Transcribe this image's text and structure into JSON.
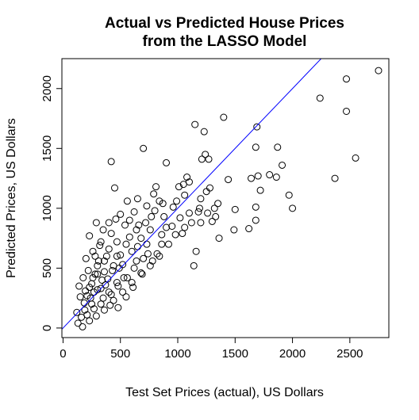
{
  "chart_data": {
    "type": "scatter",
    "title": "Actual vs Predicted House Prices",
    "subtitle": "from the LASSO Model",
    "xlabel": "Test Set Prices (actual), US Dollars",
    "ylabel": "Predicted Prices, US Dollars",
    "xlim": [
      -10,
      2840
    ],
    "ylim": [
      -80,
      2250
    ],
    "xticks": [
      0,
      500,
      1000,
      1500,
      2000,
      2500
    ],
    "yticks": [
      0,
      500,
      1000,
      1500,
      2000
    ],
    "grid": false,
    "legend": "none",
    "reference_line": {
      "slope": 1,
      "intercept": 0,
      "color": "#0000ff"
    },
    "marker": "open-circle",
    "colors": {
      "points": "#000000",
      "line": "#0000ff",
      "frame": "#000000"
    },
    "series": [
      {
        "values": [
          [
            2750,
            2150
          ],
          [
            2470,
            2080
          ],
          [
            2240,
            1920
          ],
          [
            2470,
            1810
          ],
          [
            2550,
            1420
          ],
          [
            2370,
            1250
          ],
          [
            2000,
            1000
          ],
          [
            1970,
            1110
          ],
          [
            1910,
            1360
          ],
          [
            1870,
            1510
          ],
          [
            1860,
            1260
          ],
          [
            1800,
            1280
          ],
          [
            1720,
            1150
          ],
          [
            1700,
            1270
          ],
          [
            1680,
            1510
          ],
          [
            1690,
            1680
          ],
          [
            1680,
            1010
          ],
          [
            1680,
            900
          ],
          [
            1640,
            1250
          ],
          [
            1620,
            830
          ],
          [
            1500,
            990
          ],
          [
            1490,
            820
          ],
          [
            1440,
            1240
          ],
          [
            1400,
            1760
          ],
          [
            1350,
            1040
          ],
          [
            1330,
            930
          ],
          [
            1360,
            750
          ],
          [
            1300,
            890
          ],
          [
            1270,
            1410
          ],
          [
            1280,
            1170
          ],
          [
            1250,
            1140
          ],
          [
            1240,
            1450
          ],
          [
            1230,
            1640
          ],
          [
            1210,
            1410
          ],
          [
            1200,
            1080
          ],
          [
            1190,
            1000
          ],
          [
            1180,
            970
          ],
          [
            1150,
            1700
          ],
          [
            1160,
            640
          ],
          [
            1140,
            520
          ],
          [
            1120,
            880
          ],
          [
            1100,
            1220
          ],
          [
            1080,
            1260
          ],
          [
            1060,
            1110
          ],
          [
            1050,
            1200
          ],
          [
            1040,
            790
          ],
          [
            1010,
            1180
          ],
          [
            990,
            1060
          ],
          [
            960,
            1010
          ],
          [
            900,
            1380
          ],
          [
            880,
            930
          ],
          [
            860,
            700
          ],
          [
            840,
            1060
          ],
          [
            790,
            1120
          ],
          [
            770,
            930
          ],
          [
            740,
            620
          ],
          [
            700,
            1500
          ],
          [
            690,
            450
          ],
          [
            660,
            860
          ],
          [
            640,
            560
          ],
          [
            620,
            970
          ],
          [
            610,
            340
          ],
          [
            580,
            900
          ],
          [
            560,
            1060
          ],
          [
            550,
            700
          ],
          [
            530,
            420
          ],
          [
            500,
            610
          ],
          [
            490,
            500
          ],
          [
            470,
            380
          ],
          [
            460,
            910
          ],
          [
            450,
            1170
          ],
          [
            440,
            520
          ],
          [
            420,
            790
          ],
          [
            420,
            1390
          ],
          [
            400,
            300
          ],
          [
            380,
            600
          ],
          [
            360,
            470
          ],
          [
            350,
            820
          ],
          [
            340,
            400
          ],
          [
            330,
            200
          ],
          [
            320,
            690
          ],
          [
            310,
            560
          ],
          [
            300,
            320
          ],
          [
            290,
            880
          ],
          [
            280,
            450
          ],
          [
            270,
            160
          ],
          [
            260,
            640
          ],
          [
            250,
            370
          ],
          [
            240,
            250
          ],
          [
            230,
            770
          ],
          [
            220,
            480
          ],
          [
            210,
            110
          ],
          [
            200,
            580
          ],
          [
            195,
            310
          ],
          [
            185,
            210
          ],
          [
            175,
            420
          ],
          [
            160,
            90
          ],
          [
            150,
            260
          ],
          [
            130,
            40
          ],
          [
            170,
            10
          ],
          [
            120,
            130
          ],
          [
            140,
            350
          ],
          [
            900,
            840
          ],
          [
            820,
            620
          ],
          [
            760,
            820
          ],
          [
            730,
            700
          ],
          [
            680,
            750
          ],
          [
            650,
            680
          ],
          [
            600,
            640
          ],
          [
            520,
            530
          ],
          [
            470,
            600
          ],
          [
            430,
            480
          ],
          [
            390,
            410
          ],
          [
            370,
            360
          ],
          [
            330,
            330
          ],
          [
            300,
            450
          ],
          [
            270,
            300
          ],
          [
            250,
            200
          ],
          [
            230,
            340
          ],
          [
            210,
            270
          ],
          [
            190,
            150
          ],
          [
            350,
            250
          ],
          [
            420,
            280
          ],
          [
            480,
            350
          ],
          [
            560,
            420
          ],
          [
            620,
            500
          ],
          [
            700,
            580
          ],
          [
            780,
            560
          ],
          [
            860,
            780
          ],
          [
            950,
            850
          ],
          [
            1020,
            920
          ],
          [
            1100,
            960
          ],
          [
            580,
            760
          ],
          [
            640,
            820
          ],
          [
            720,
            880
          ],
          [
            800,
            980
          ],
          [
            870,
            1040
          ],
          [
            540,
            860
          ],
          [
            470,
            720
          ],
          [
            400,
            660
          ],
          [
            360,
            560
          ],
          [
            300,
            520
          ],
          [
            260,
            420
          ],
          [
            440,
            230
          ],
          [
            520,
            300
          ],
          [
            600,
            380
          ],
          [
            680,
            460
          ],
          [
            760,
            520
          ],
          [
            840,
            600
          ],
          [
            920,
            700
          ],
          [
            980,
            780
          ],
          [
            1060,
            840
          ],
          [
            1200,
            880
          ],
          [
            1260,
            960
          ],
          [
            1320,
            1000
          ],
          [
            400,
            880
          ],
          [
            500,
            950
          ],
          [
            650,
            1080
          ],
          [
            730,
            1020
          ],
          [
            810,
            1180
          ],
          [
            330,
            720
          ],
          [
            280,
            600
          ],
          [
            360,
            150
          ],
          [
            290,
            100
          ],
          [
            230,
            60
          ],
          [
            410,
            190
          ],
          [
            480,
            170
          ],
          [
            550,
            260
          ]
        ]
      }
    ]
  }
}
